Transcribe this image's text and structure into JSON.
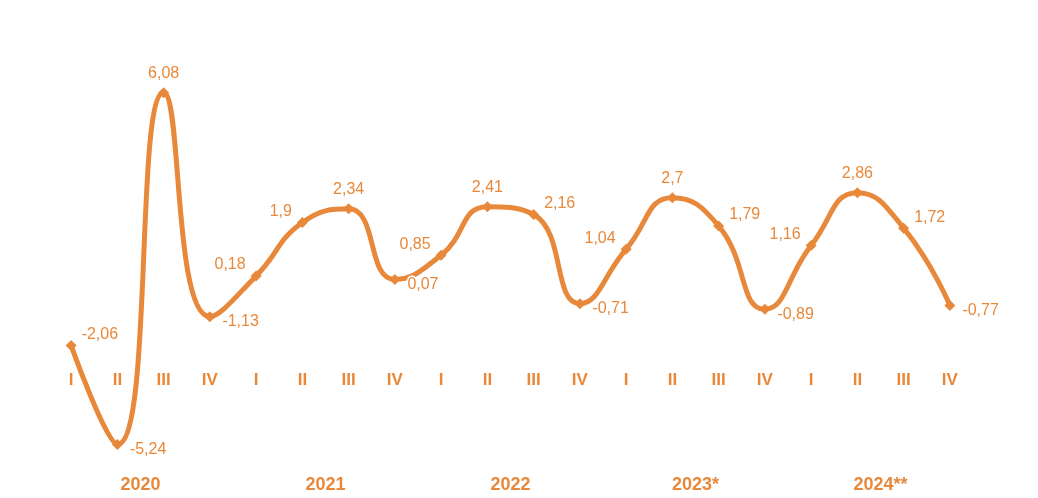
{
  "chart_data": {
    "type": "line",
    "categories": [
      "I",
      "II",
      "III",
      "IV",
      "I",
      "II",
      "III",
      "IV",
      "I",
      "II",
      "III",
      "IV",
      "I",
      "II",
      "III",
      "IV",
      "I",
      "II",
      "III",
      "IV"
    ],
    "values": [
      -2.06,
      -5.24,
      6.08,
      -1.13,
      0.18,
      1.9,
      2.34,
      0.07,
      0.85,
      2.41,
      2.16,
      -0.71,
      1.04,
      2.7,
      1.79,
      -0.89,
      1.16,
      2.86,
      1.72,
      -0.77
    ],
    "value_labels": [
      "-2,06",
      "-5,24",
      "6,08",
      "-1,13",
      "0,18",
      "1,9",
      "2,34",
      "0,07",
      "0,85",
      "2,41",
      "2,16",
      "-0,71",
      "1,04",
      "2,7",
      "1,79",
      "-0,89",
      "1,16",
      "2,86",
      "1,72",
      "-0,77"
    ],
    "color": "#e8883a",
    "marker": "diamond",
    "annotations": [
      "2020",
      "2021",
      "2022",
      "2023*",
      "2024**"
    ]
  }
}
